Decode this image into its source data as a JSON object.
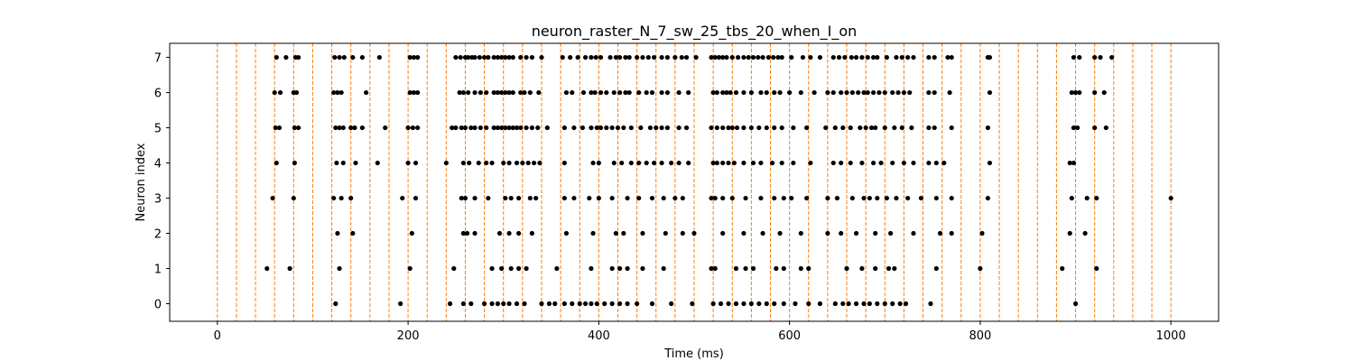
{
  "chart_data": {
    "type": "scatter",
    "title": "neuron_raster_N_7_sw_25_tbs_20_when_I_on",
    "xlabel": "Time (ms)",
    "ylabel": "Neuron index",
    "xlim": [
      -50,
      1050
    ],
    "ylim": [
      -0.5,
      7.4
    ],
    "xticks": [
      0,
      200,
      400,
      600,
      800,
      1000
    ],
    "yticks": [
      0,
      1,
      2,
      3,
      4,
      5,
      6,
      7
    ],
    "grid": false,
    "colors": {
      "points": "#000000",
      "vlines": "#ff7f0e"
    },
    "vlines": {
      "style": "dashed",
      "x": [
        0,
        20,
        40,
        60,
        80,
        100,
        120,
        140,
        160,
        180,
        200,
        220,
        240,
        260,
        280,
        300,
        320,
        340,
        360,
        380,
        400,
        420,
        440,
        460,
        480,
        500,
        520,
        540,
        560,
        580,
        600,
        620,
        640,
        660,
        680,
        700,
        720,
        740,
        760,
        780,
        800,
        820,
        840,
        860,
        880,
        900,
        920,
        940,
        960,
        980,
        1000
      ]
    },
    "series": [
      {
        "neuron": 7,
        "x": [
          62,
          72,
          82,
          85,
          123,
          128,
          133,
          142,
          152,
          170,
          202,
          206,
          210,
          250,
          255,
          260,
          263,
          267,
          270,
          275,
          280,
          284,
          290,
          294,
          298,
          302,
          306,
          310,
          318,
          324,
          330,
          340,
          362,
          370,
          378,
          386,
          392,
          397,
          402,
          412,
          418,
          422,
          428,
          432,
          440,
          446,
          452,
          458,
          466,
          472,
          480,
          487,
          492,
          502,
          518,
          522,
          526,
          530,
          534,
          540,
          546,
          552,
          557,
          562,
          567,
          572,
          578,
          583,
          588,
          592,
          602,
          614,
          622,
          632,
          646,
          652,
          658,
          665,
          670,
          676,
          682,
          688,
          692,
          702,
          712,
          718,
          724,
          730,
          746,
          752,
          766,
          770,
          808,
          810,
          898,
          904,
          920,
          926,
          938
        ]
      },
      {
        "neuron": 6,
        "x": [
          60,
          66,
          80,
          83,
          122,
          126,
          130,
          156,
          202,
          206,
          210,
          254,
          258,
          263,
          270,
          276,
          282,
          290,
          294,
          298,
          302,
          306,
          310,
          318,
          322,
          328,
          337,
          366,
          372,
          384,
          392,
          396,
          402,
          408,
          416,
          422,
          428,
          432,
          442,
          450,
          456,
          466,
          472,
          484,
          494,
          520,
          524,
          530,
          534,
          538,
          544,
          552,
          560,
          570,
          576,
          584,
          590,
          600,
          612,
          626,
          640,
          646,
          654,
          660,
          666,
          672,
          678,
          682,
          688,
          694,
          700,
          708,
          714,
          720,
          726,
          746,
          752,
          768,
          810,
          896,
          900,
          904,
          920,
          930
        ]
      },
      {
        "neuron": 5,
        "x": [
          61,
          65,
          81,
          85,
          124,
          128,
          132,
          140,
          144,
          152,
          176,
          200,
          205,
          210,
          246,
          250,
          256,
          260,
          266,
          270,
          276,
          282,
          290,
          294,
          298,
          302,
          306,
          310,
          314,
          318,
          324,
          330,
          336,
          346,
          364,
          374,
          383,
          392,
          398,
          402,
          408,
          414,
          420,
          426,
          434,
          444,
          454,
          460,
          466,
          472,
          484,
          492,
          518,
          524,
          530,
          536,
          540,
          545,
          552,
          560,
          568,
          576,
          584,
          592,
          604,
          618,
          638,
          648,
          656,
          664,
          674,
          680,
          686,
          690,
          700,
          710,
          718,
          728,
          746,
          752,
          770,
          808,
          898,
          902,
          920,
          932
        ]
      },
      {
        "neuron": 4,
        "x": [
          62,
          81,
          125,
          132,
          145,
          168,
          200,
          208,
          240,
          258,
          264,
          274,
          282,
          288,
          300,
          306,
          314,
          320,
          326,
          332,
          338,
          364,
          394,
          400,
          416,
          424,
          434,
          442,
          450,
          458,
          466,
          476,
          484,
          494,
          520,
          524,
          530,
          536,
          542,
          552,
          562,
          570,
          582,
          592,
          604,
          622,
          646,
          654,
          664,
          676,
          688,
          696,
          708,
          720,
          730,
          746,
          754,
          762,
          810,
          894,
          898
        ]
      },
      {
        "neuron": 3,
        "x": [
          58,
          80,
          122,
          130,
          140,
          194,
          208,
          256,
          260,
          270,
          284,
          302,
          308,
          316,
          328,
          334,
          364,
          374,
          390,
          400,
          414,
          430,
          442,
          456,
          468,
          480,
          488,
          518,
          522,
          530,
          540,
          554,
          570,
          584,
          594,
          602,
          618,
          640,
          650,
          666,
          678,
          684,
          692,
          702,
          712,
          724,
          738,
          754,
          770,
          808,
          896,
          912,
          922,
          1000
        ]
      },
      {
        "neuron": 2,
        "x": [
          126,
          142,
          204,
          258,
          262,
          270,
          296,
          306,
          316,
          330,
          366,
          394,
          418,
          426,
          446,
          470,
          488,
          500,
          530,
          552,
          572,
          590,
          612,
          640,
          654,
          670,
          690,
          706,
          730,
          758,
          770,
          802,
          894,
          910
        ]
      },
      {
        "neuron": 1,
        "x": [
          52,
          76,
          128,
          202,
          248,
          288,
          298,
          308,
          316,
          324,
          356,
          392,
          414,
          422,
          430,
          446,
          468,
          518,
          522,
          544,
          554,
          562,
          586,
          594,
          612,
          620,
          660,
          676,
          690,
          704,
          710,
          754,
          800,
          886,
          922
        ]
      },
      {
        "neuron": 0,
        "x": [
          124,
          192,
          244,
          258,
          266,
          280,
          288,
          294,
          300,
          306,
          314,
          322,
          340,
          348,
          354,
          364,
          372,
          380,
          386,
          392,
          398,
          406,
          414,
          422,
          430,
          440,
          456,
          476,
          498,
          520,
          528,
          536,
          544,
          552,
          560,
          568,
          576,
          584,
          594,
          606,
          620,
          632,
          648,
          656,
          662,
          670,
          678,
          684,
          692,
          700,
          708,
          716,
          722,
          748,
          900
        ]
      }
    ]
  }
}
